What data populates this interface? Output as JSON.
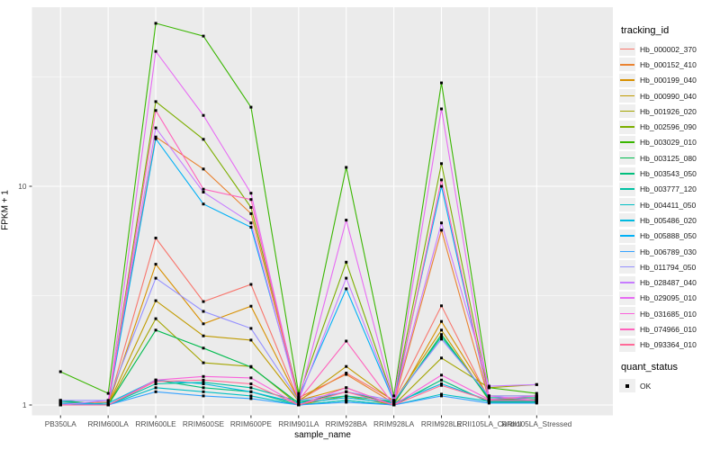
{
  "chart_data": {
    "type": "line",
    "title": "",
    "xlabel": "sample_name",
    "ylabel": "FPKM + 1",
    "y_scale": "log10",
    "y_ticks": [
      1,
      10
    ],
    "y_tick_labels": [
      "1",
      "10"
    ],
    "ylim": [
      0.92,
      66
    ],
    "grid": "on",
    "legend_position": "right",
    "panel_bg": "#EBEBEB",
    "grid_color": "#FFFFFF",
    "tick_text_color": "#4D4D4D",
    "marker": "black-square",
    "categories": [
      "PB350LA",
      "RRIM600LA",
      "RRIM600LE",
      "RRIM600SE",
      "RRIM600PE",
      "RRIM901LA",
      "RRIM928BA",
      "RRIM928LA",
      "RRIM928LE",
      "RRII105LA_Control",
      "RRII105LA_Stressed"
    ],
    "color_legend_title": "tracking_id",
    "shape_legend_title": "quant_status",
    "shape_legend_label": "OK",
    "series": [
      {
        "name": "Hb_000002_370",
        "color": "#F8766D",
        "values": [
          1.05,
          1.0,
          5.8,
          2.97,
          3.56,
          1.05,
          1.4,
          1.05,
          2.84,
          1.06,
          1.08
        ]
      },
      {
        "name": "Hb_000152_410",
        "color": "#EA8331",
        "values": [
          1.02,
          1.03,
          16.8,
          12.0,
          7.5,
          1.08,
          1.38,
          1.02,
          6.3,
          1.05,
          1.05
        ]
      },
      {
        "name": "Hb_000199_040",
        "color": "#D89000",
        "values": [
          1.0,
          1.0,
          4.4,
          2.35,
          2.83,
          1.05,
          1.2,
          1.0,
          2.41,
          1.08,
          1.08
        ]
      },
      {
        "name": "Hb_000990_040",
        "color": "#C09B00",
        "values": [
          1.0,
          1.0,
          3.0,
          2.07,
          1.98,
          1.04,
          1.5,
          1.04,
          2.2,
          1.05,
          1.05
        ]
      },
      {
        "name": "Hb_001926_020",
        "color": "#A3A500",
        "values": [
          1.0,
          1.0,
          2.48,
          1.56,
          1.5,
          1.0,
          1.1,
          1.0,
          1.64,
          1.2,
          1.24
        ]
      },
      {
        "name": "Hb_002596_090",
        "color": "#7CAE00",
        "values": [
          1.02,
          1.0,
          24.4,
          16.4,
          8.0,
          1.1,
          4.5,
          1.05,
          12.7,
          1.1,
          1.1
        ]
      },
      {
        "name": "Hb_003029_010",
        "color": "#39B600",
        "values": [
          1.42,
          1.13,
          55.6,
          48.6,
          23.0,
          1.13,
          12.2,
          1.1,
          29.7,
          1.2,
          1.13
        ]
      },
      {
        "name": "Hb_003125_080",
        "color": "#00BB4E",
        "values": [
          1.05,
          1.0,
          2.2,
          1.82,
          1.49,
          1.02,
          1.15,
          1.02,
          2.1,
          1.06,
          1.06
        ]
      },
      {
        "name": "Hb_003543_050",
        "color": "#00BF7D",
        "values": [
          1.02,
          1.0,
          1.3,
          1.2,
          1.15,
          1.0,
          1.05,
          1.0,
          1.3,
          1.03,
          1.03
        ]
      },
      {
        "name": "Hb_003777_120",
        "color": "#00C1A3",
        "values": [
          1.04,
          1.0,
          1.25,
          1.27,
          1.2,
          1.04,
          1.1,
          1.04,
          2.05,
          1.08,
          1.08
        ]
      },
      {
        "name": "Hb_004411_050",
        "color": "#00BFC4",
        "values": [
          1.0,
          1.0,
          1.2,
          1.15,
          1.1,
          1.0,
          1.05,
          1.0,
          1.12,
          1.04,
          1.04
        ]
      },
      {
        "name": "Hb_005486_020",
        "color": "#00BAE0",
        "values": [
          1.0,
          1.02,
          1.3,
          1.25,
          1.15,
          1.02,
          1.08,
          1.02,
          1.25,
          1.05,
          1.05
        ]
      },
      {
        "name": "Hb_005888_050",
        "color": "#00B0F6",
        "values": [
          1.02,
          1.0,
          16.5,
          8.3,
          6.5,
          1.08,
          3.4,
          1.04,
          10.0,
          1.05,
          1.05
        ]
      },
      {
        "name": "Hb_006789_030",
        "color": "#35A2FF",
        "values": [
          1.02,
          1.0,
          1.15,
          1.1,
          1.07,
          1.0,
          1.03,
          1.0,
          1.1,
          1.02,
          1.02
        ]
      },
      {
        "name": "Hb_011794_050",
        "color": "#9590FF",
        "values": [
          1.05,
          1.05,
          3.8,
          2.68,
          2.24,
          1.05,
          1.15,
          1.05,
          2.0,
          1.1,
          1.1
        ]
      },
      {
        "name": "Hb_028487_040",
        "color": "#C77CFF",
        "values": [
          1.0,
          1.05,
          18.5,
          9.4,
          6.8,
          1.05,
          3.8,
          1.05,
          6.8,
          1.22,
          1.24
        ]
      },
      {
        "name": "Hb_029095_010",
        "color": "#E76BF3",
        "values": [
          1.0,
          1.0,
          41.4,
          21.1,
          9.3,
          1.05,
          7.0,
          1.05,
          22.6,
          1.1,
          1.05
        ]
      },
      {
        "name": "Hb_031685_010",
        "color": "#FA62DB",
        "values": [
          1.0,
          1.0,
          1.3,
          1.35,
          1.33,
          1.0,
          1.2,
          1.0,
          1.37,
          1.06,
          1.1
        ]
      },
      {
        "name": "Hb_074966_010",
        "color": "#FF62BC",
        "values": [
          1.0,
          1.0,
          22.2,
          9.7,
          8.7,
          1.05,
          1.96,
          1.0,
          10.7,
          1.05,
          1.05
        ]
      },
      {
        "name": "Hb_093364_010",
        "color": "#FF6A98",
        "values": [
          1.0,
          1.0,
          1.28,
          1.3,
          1.25,
          1.0,
          1.15,
          1.0,
          1.23,
          1.05,
          1.05
        ]
      }
    ]
  }
}
